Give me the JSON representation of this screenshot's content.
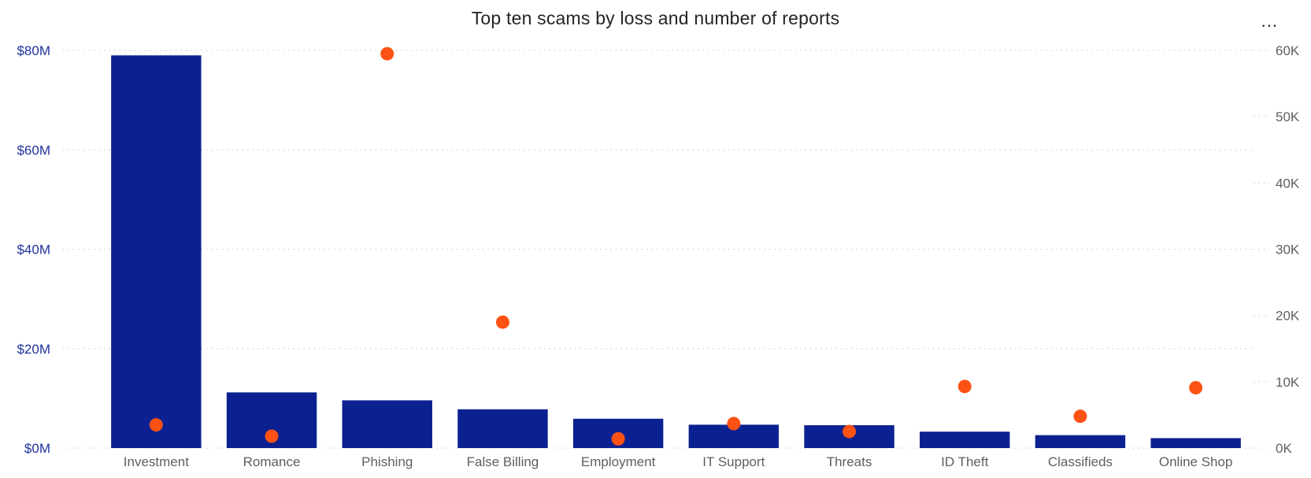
{
  "title": "Top ten scams by loss and number of reports",
  "more_options": "...",
  "colors": {
    "bar": "#0c2191",
    "dot": "#fe5214",
    "grid": "#c8c6c4",
    "left_axis_text": "#20339b",
    "right_axis_text": "#605e5c"
  },
  "chart_data": {
    "type": "bar",
    "categories": [
      "Investment",
      "Romance",
      "Phishing",
      "False Billing",
      "Employment",
      "IT Support",
      "Threats",
      "ID Theft",
      "Classifieds",
      "Online Shop"
    ],
    "series": [
      {
        "type": "bar",
        "axis": "left",
        "values": [
          79000000,
          11200000,
          9600000,
          7800000,
          5900000,
          4700000,
          4600000,
          3300000,
          2600000,
          2000000
        ]
      },
      {
        "type": "scatter",
        "axis": "right",
        "values": [
          3500,
          1800,
          59500,
          19000,
          1400,
          3700,
          2500,
          9300,
          4800,
          9100
        ]
      }
    ],
    "y_left": {
      "ticks": [
        "$0M",
        "$20M",
        "$40M",
        "$60M",
        "$80M"
      ],
      "range": [
        0,
        80000000
      ]
    },
    "y_right": {
      "ticks": [
        "0K",
        "10K",
        "20K",
        "30K",
        "40K",
        "50K",
        "60K"
      ],
      "range": [
        0,
        60000
      ]
    },
    "grid": true,
    "legend": "none"
  }
}
